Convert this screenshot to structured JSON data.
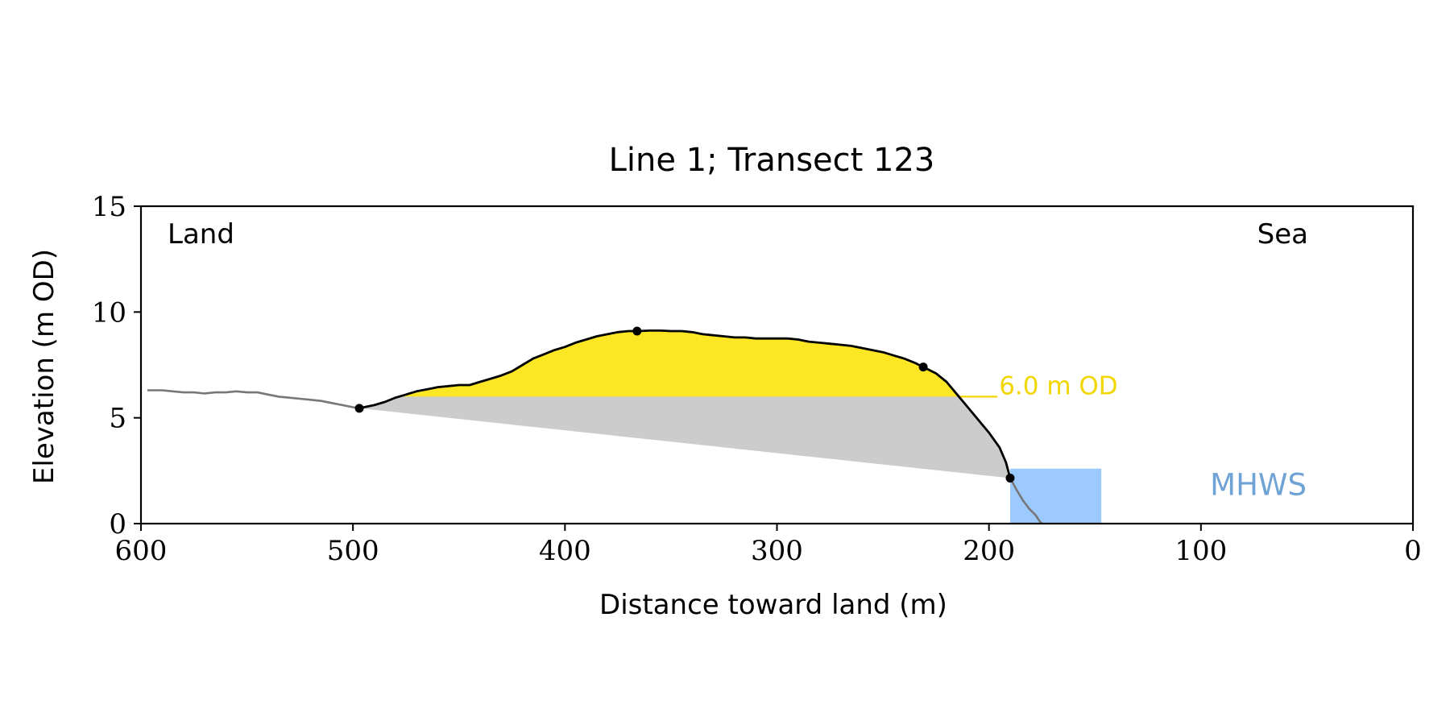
{
  "chart_data": {
    "type": "area",
    "title": "Line 1; Transect 123",
    "xlabel": "Distance toward land (m)",
    "ylabel": "Elevation (m OD)",
    "xlim": [
      600,
      0
    ],
    "ylim": [
      0,
      15
    ],
    "x_ticks": [
      600,
      500,
      400,
      300,
      200,
      100,
      0
    ],
    "y_ticks": [
      0,
      5,
      10,
      15
    ],
    "grid": false,
    "corner_labels": {
      "land": "Land",
      "sea": "Sea"
    },
    "colors": {
      "profile": "#000000",
      "profile_outside": "#777777",
      "dune_fill": "#fde725",
      "base_fill": "#cccccc",
      "mhws_fill": "#9ccaff",
      "mhws_label": "#6fa3d6",
      "threshold_label": "#f2d600"
    },
    "threshold": {
      "y": 6.0,
      "label": "6.0 m OD",
      "x_end": 196
    },
    "mhws": {
      "label": "MHWS",
      "elevation": 2.6,
      "x_from": 190,
      "x_to": 147
    },
    "profile_outside_land": [
      [
        597,
        6.3
      ],
      [
        590,
        6.3
      ],
      [
        585,
        6.25
      ],
      [
        580,
        6.2
      ],
      [
        575,
        6.2
      ],
      [
        570,
        6.15
      ],
      [
        565,
        6.2
      ],
      [
        560,
        6.2
      ],
      [
        555,
        6.25
      ],
      [
        550,
        6.2
      ],
      [
        545,
        6.2
      ],
      [
        540,
        6.1
      ],
      [
        535,
        6.0
      ],
      [
        530,
        5.95
      ],
      [
        525,
        5.9
      ],
      [
        520,
        5.85
      ],
      [
        515,
        5.8
      ],
      [
        510,
        5.7
      ],
      [
        505,
        5.6
      ],
      [
        500,
        5.5
      ],
      [
        497,
        5.45
      ]
    ],
    "profile_dune": [
      [
        497,
        5.45
      ],
      [
        490,
        5.6
      ],
      [
        485,
        5.75
      ],
      [
        480,
        5.95
      ],
      [
        475,
        6.1
      ],
      [
        470,
        6.25
      ],
      [
        465,
        6.35
      ],
      [
        460,
        6.45
      ],
      [
        455,
        6.5
      ],
      [
        450,
        6.55
      ],
      [
        445,
        6.55
      ],
      [
        440,
        6.7
      ],
      [
        435,
        6.85
      ],
      [
        430,
        7.0
      ],
      [
        425,
        7.2
      ],
      [
        420,
        7.5
      ],
      [
        415,
        7.8
      ],
      [
        410,
        8.0
      ],
      [
        405,
        8.2
      ],
      [
        400,
        8.35
      ],
      [
        395,
        8.55
      ],
      [
        390,
        8.7
      ],
      [
        385,
        8.85
      ],
      [
        380,
        8.95
      ],
      [
        375,
        9.05
      ],
      [
        370,
        9.1
      ],
      [
        365,
        9.1
      ],
      [
        360,
        9.12
      ],
      [
        355,
        9.12
      ],
      [
        350,
        9.1
      ],
      [
        345,
        9.1
      ],
      [
        340,
        9.05
      ],
      [
        335,
        8.95
      ],
      [
        330,
        8.9
      ],
      [
        325,
        8.85
      ],
      [
        320,
        8.8
      ],
      [
        315,
        8.8
      ],
      [
        310,
        8.75
      ],
      [
        305,
        8.75
      ],
      [
        300,
        8.75
      ],
      [
        295,
        8.75
      ],
      [
        290,
        8.7
      ],
      [
        285,
        8.6
      ],
      [
        280,
        8.55
      ],
      [
        275,
        8.5
      ],
      [
        270,
        8.45
      ],
      [
        265,
        8.4
      ],
      [
        260,
        8.3
      ],
      [
        255,
        8.2
      ],
      [
        250,
        8.1
      ],
      [
        245,
        7.95
      ],
      [
        240,
        7.8
      ],
      [
        235,
        7.6
      ],
      [
        231,
        7.4
      ],
      [
        225,
        7.1
      ],
      [
        220,
        6.7
      ],
      [
        215,
        6.1
      ],
      [
        210,
        5.5
      ],
      [
        205,
        4.9
      ],
      [
        200,
        4.3
      ],
      [
        195,
        3.6
      ],
      [
        192,
        2.9
      ],
      [
        190,
        2.15
      ]
    ],
    "profile_outside_sea": [
      [
        190,
        2.15
      ],
      [
        187,
        1.6
      ],
      [
        184,
        1.1
      ],
      [
        181,
        0.7
      ],
      [
        178,
        0.4
      ],
      [
        176,
        0.1
      ],
      [
        175,
        0.0
      ]
    ],
    "markers": [
      {
        "x": 497,
        "y": 5.45
      },
      {
        "x": 366,
        "y": 9.1
      },
      {
        "x": 231,
        "y": 7.4
      },
      {
        "x": 190,
        "y": 2.15
      }
    ]
  }
}
